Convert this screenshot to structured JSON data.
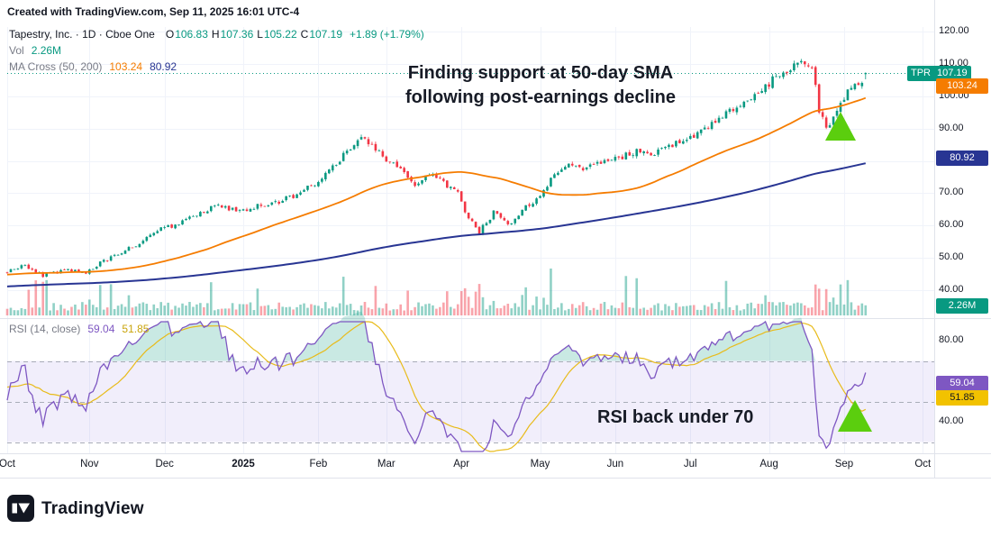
{
  "meta": {
    "created_line": "Created with TradingView.com, Sep 11, 2025 16:01 UTC-4"
  },
  "legend": {
    "symbol_line": {
      "title": "Tapestry, Inc. · 1D · Cboe One",
      "o_label": "O",
      "o": "106.83",
      "h_label": "H",
      "h": "107.36",
      "l_label": "L",
      "l": "105.22",
      "c_label": "C",
      "c": "107.19",
      "change": "+1.89 (+1.79%)"
    },
    "volume_row": {
      "label": "Vol",
      "value": "2.26M"
    },
    "ma_row": {
      "label": "MA Cross (50, 200)",
      "ma50": "103.24",
      "ma200": "80.92"
    },
    "rsi_row": {
      "label": "RSI (14, close)",
      "value": "59.04",
      "ma_value": "51.85"
    }
  },
  "annotations": {
    "main_line1": "Finding support at 50-day SMA",
    "main_line2": "following post-earnings decline",
    "rsi": "RSI back under 70"
  },
  "axes": {
    "price_labels": [
      {
        "text": "120.00",
        "v": 120
      },
      {
        "text": "110.00",
        "v": 110
      },
      {
        "text": "100.00",
        "v": 100
      },
      {
        "text": "90.00",
        "v": 90
      },
      {
        "text": "70.00",
        "v": 70
      },
      {
        "text": "60.00",
        "v": 60
      },
      {
        "text": "50.00",
        "v": 50
      },
      {
        "text": "40.00",
        "v": 40
      }
    ],
    "price_badges": [
      {
        "name": "last-price-badge",
        "label": "TPR",
        "text": "107.19",
        "v": 107.19,
        "bg": "#089981",
        "fg": "#ffffff"
      },
      {
        "name": "ma50-badge",
        "text": "103.24",
        "v": 103.24,
        "bg": "#f57c00",
        "fg": "#ffffff"
      },
      {
        "name": "ma200-badge",
        "text": "80.92",
        "v": 80.92,
        "bg": "#283593",
        "fg": "#ffffff"
      },
      {
        "name": "volume-badge",
        "text": "2.26M",
        "y": 339,
        "bg": "#089981",
        "fg": "#ffffff"
      }
    ],
    "rsi_labels": [
      {
        "text": "80.00",
        "v": 80
      },
      {
        "text": "40.00",
        "v": 40
      }
    ],
    "rsi_badges": [
      {
        "name": "rsi-value-badge",
        "text": "59.04",
        "v": 59.04,
        "bg": "#7e57c2",
        "fg": "#ffffff"
      },
      {
        "name": "rsi-ma-badge",
        "text": "51.85",
        "v": 51.85,
        "bg": "#f2c200",
        "fg": "#131722"
      }
    ],
    "time_labels": [
      {
        "text": "Oct",
        "i": 0
      },
      {
        "text": "Nov",
        "i": 23
      },
      {
        "text": "Dec",
        "i": 44
      },
      {
        "text": "2025",
        "i": 66,
        "bold": true
      },
      {
        "text": "Feb",
        "i": 87
      },
      {
        "text": "Mar",
        "i": 106
      },
      {
        "text": "Apr",
        "i": 127
      },
      {
        "text": "May",
        "i": 149
      },
      {
        "text": "Jun",
        "i": 170
      },
      {
        "text": "Jul",
        "i": 191
      },
      {
        "text": "Aug",
        "i": 213
      },
      {
        "text": "Sep",
        "i": 234
      },
      {
        "text": "Oct",
        "i": 256
      }
    ]
  },
  "colors": {
    "up": "#089981",
    "down": "#f23645",
    "vol_up": "rgba(8,153,129,0.45)",
    "vol_down": "rgba(242,54,69,0.45)",
    "ma50": "#f57c00",
    "ma200": "#283593",
    "rsi": "#7e57c2",
    "rsi_ma": "#e8bb1a",
    "marker": "#5bce0e",
    "grid": "#f0f3fa",
    "separator": "#e0e3eb",
    "band_fill": "rgba(136,118,222,0.12)",
    "band_line": "#a9adb8",
    "overbought_fill": "rgba(8,153,129,0.22)",
    "axis_text": "#131722",
    "muted_text": "#787b86"
  },
  "footer": {
    "brand": "TradingView"
  },
  "chart_data": [
    {
      "type": "candlestick",
      "title": "Tapestry, Inc.",
      "interval": "1D",
      "exchange": "Cboe One",
      "last_bar": {
        "open": 106.83,
        "high": 107.36,
        "low": 105.22,
        "close": 107.19
      },
      "change": "+1.89 (+1.79%)",
      "ylim": [
        38,
        120
      ],
      "ylabel_ticks": [
        40,
        50,
        60,
        70,
        80,
        90,
        100,
        110,
        120
      ],
      "x_categories": [
        "Oct",
        "Nov",
        "Dec",
        "2025",
        "Feb",
        "Mar",
        "Apr",
        "May",
        "Jun",
        "Jul",
        "Aug",
        "Sep",
        "Oct"
      ],
      "overlays": [
        {
          "name": "MA 50",
          "current": 103.24,
          "color": "#f57c00"
        },
        {
          "name": "MA 200",
          "current": 80.92,
          "color": "#283593"
        }
      ],
      "markers": [
        {
          "shape": "triangle-up",
          "color": "green",
          "location": "early Sep below price near 50-day SMA"
        }
      ],
      "anchors_note": "estimated close-price trend read from the chart; index 0 = first visible bar (Oct), negative indices = pre-history used only to seed the moving averages",
      "trend_anchors": [
        [
          -200,
          36
        ],
        [
          -160,
          40
        ],
        [
          -120,
          38.5
        ],
        [
          -80,
          42
        ],
        [
          -40,
          44
        ],
        [
          -10,
          45.5
        ],
        [
          0,
          46
        ],
        [
          5,
          47.5
        ],
        [
          10,
          44.5
        ],
        [
          16,
          46.2
        ],
        [
          22,
          45.5
        ],
        [
          26,
          48.5
        ],
        [
          31,
          51
        ],
        [
          36,
          54
        ],
        [
          41,
          58
        ],
        [
          46,
          60
        ],
        [
          52,
          63
        ],
        [
          58,
          66
        ],
        [
          64,
          64.5
        ],
        [
          70,
          66
        ],
        [
          76,
          67.5
        ],
        [
          82,
          70
        ],
        [
          86,
          73
        ],
        [
          90,
          77
        ],
        [
          95,
          83
        ],
        [
          99,
          87
        ],
        [
          102,
          85
        ],
        [
          105,
          81
        ],
        [
          109,
          79
        ],
        [
          114,
          73
        ],
        [
          118,
          76
        ],
        [
          122,
          73
        ],
        [
          126,
          70
        ],
        [
          129,
          62
        ],
        [
          132,
          58
        ],
        [
          136,
          64
        ],
        [
          140,
          60
        ],
        [
          144,
          65
        ],
        [
          148,
          68
        ],
        [
          152,
          74
        ],
        [
          156,
          79
        ],
        [
          161,
          77
        ],
        [
          166,
          80
        ],
        [
          171,
          81
        ],
        [
          176,
          83
        ],
        [
          181,
          82
        ],
        [
          186,
          85
        ],
        [
          190,
          86
        ],
        [
          195,
          90
        ],
        [
          200,
          94
        ],
        [
          205,
          98
        ],
        [
          210,
          101
        ],
        [
          214,
          105
        ],
        [
          218,
          108
        ],
        [
          222,
          111
        ],
        [
          225,
          109
        ],
        [
          227,
          96
        ],
        [
          229,
          90
        ],
        [
          231,
          93
        ],
        [
          233,
          97
        ],
        [
          235,
          101
        ],
        [
          237,
          103
        ],
        [
          239,
          105
        ],
        [
          240,
          107.19
        ]
      ]
    },
    {
      "type": "bar",
      "name": "Volume",
      "current_label": "2.26M",
      "colors": {
        "up": "#089981",
        "down": "#f23645"
      }
    },
    {
      "type": "line",
      "name": "RSI",
      "params": "14, close",
      "current": 59.04,
      "ma_current": 51.85,
      "levels": [
        70,
        50,
        30
      ],
      "band_fill_range": [
        30,
        70
      ],
      "visible_ticks": [
        80,
        40
      ],
      "annotation": "RSI back under 70"
    }
  ]
}
